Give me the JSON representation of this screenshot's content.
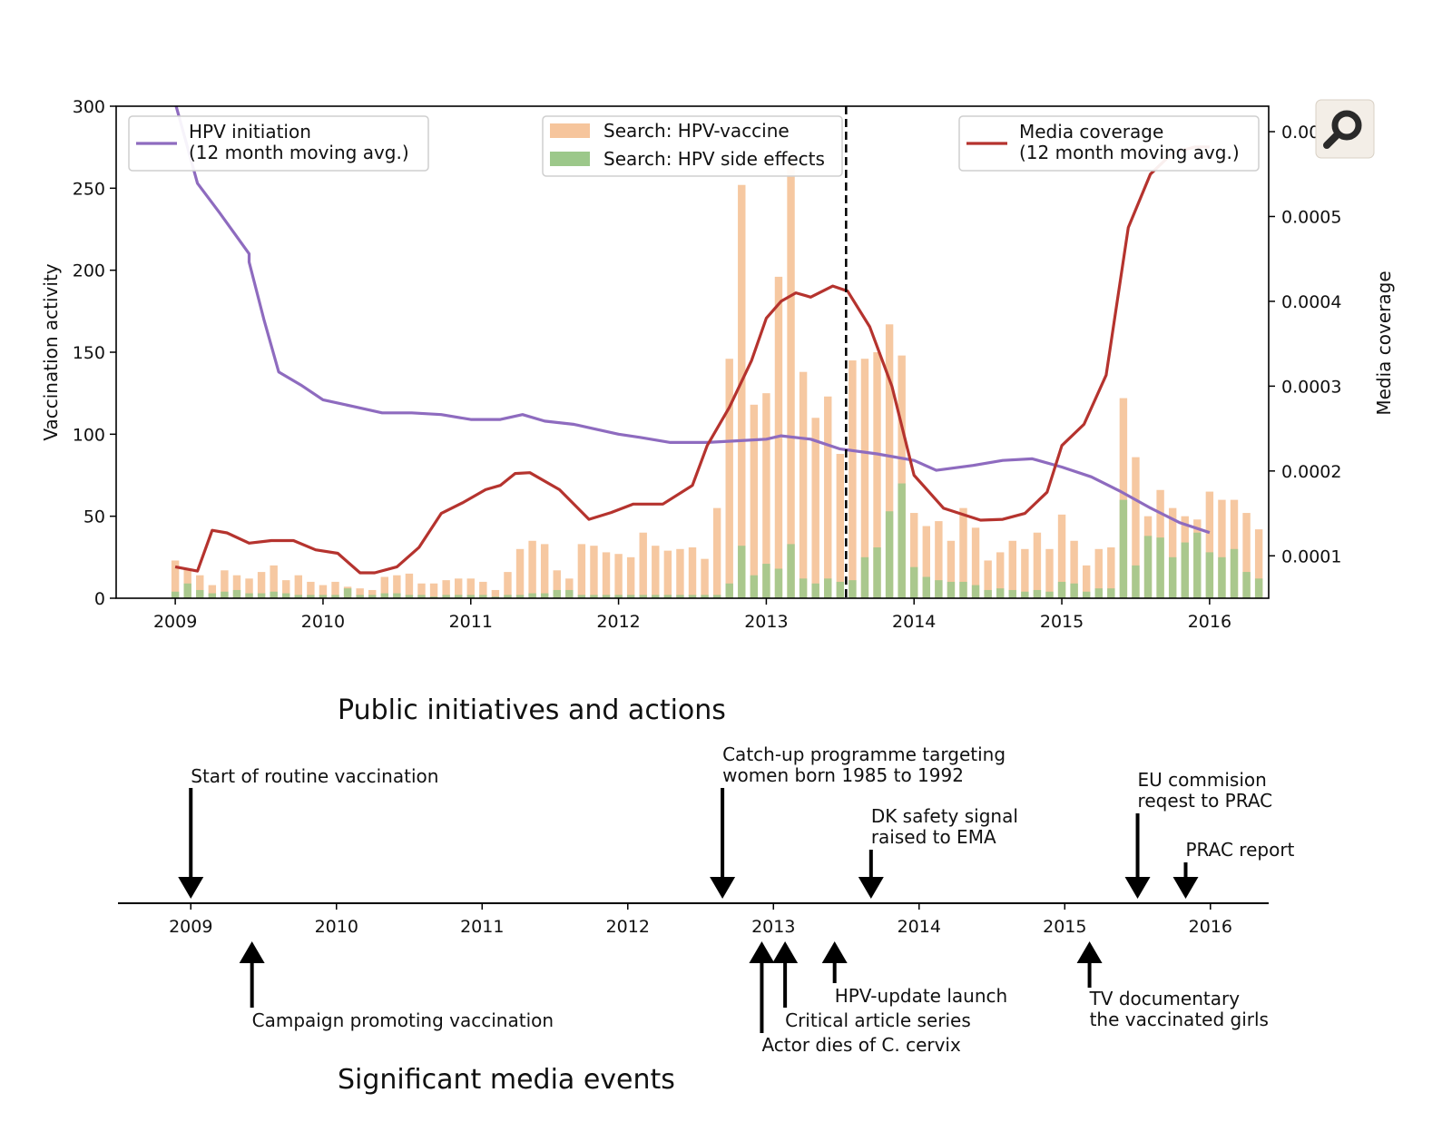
{
  "chart_data": [
    {
      "type": "bar+line",
      "xlim": [
        2008.6,
        2016.4
      ],
      "x_ticks": [
        "2009",
        "2010",
        "2011",
        "2012",
        "2013",
        "2014",
        "2015",
        "2016"
      ],
      "y_left": {
        "label": "Vaccination activity",
        "lim": [
          0,
          300
        ],
        "ticks": [
          "0",
          "50",
          "100",
          "150",
          "200",
          "250",
          "300"
        ]
      },
      "y_right": {
        "label": "Media coverage",
        "lim": [
          5e-05,
          0.00063
        ],
        "ticks": [
          "0.0001",
          "0.0002",
          "0.0003",
          "0.0004",
          "0.0005",
          "0.0006"
        ],
        "tick_labels": [
          "0.0001",
          "0.0002",
          "0.0003",
          "0.0004",
          "0.0005",
          "0.00"
        ]
      },
      "vline_x": 2013.54,
      "legends": [
        {
          "position": "top-left",
          "entries": [
            {
              "label": "HPV initiation\n(12 month moving avg.)",
              "swatch": "line",
              "color": "#8e6bbf"
            }
          ]
        },
        {
          "position": "top-center",
          "entries": [
            {
              "label": "Search: HPV-vaccine",
              "swatch": "patch",
              "color": "#f6c59c"
            },
            {
              "label": "Search: HPV side effects",
              "swatch": "patch",
              "color": "#9cc88a"
            }
          ]
        },
        {
          "position": "top-right",
          "entries": [
            {
              "label": "Media coverage\n(12 month moving avg.)",
              "swatch": "line",
              "color": "#b5332e"
            }
          ]
        }
      ],
      "series": [
        {
          "name": "Search: HPV-vaccine",
          "kind": "bar",
          "axis": "left",
          "color": "#f6c59c",
          "start": 2009.0,
          "step": 0.0833333,
          "values": [
            23,
            18,
            14,
            8,
            17,
            14,
            12,
            16,
            20,
            11,
            14,
            10,
            8,
            10,
            7,
            6,
            5,
            13,
            14,
            15,
            9,
            9,
            11,
            12,
            12,
            10,
            5,
            16,
            30,
            35,
            33,
            17,
            12,
            33,
            32,
            28,
            27,
            25,
            40,
            32,
            29,
            30,
            31,
            24,
            55,
            146,
            252,
            118,
            125,
            196,
            270,
            138,
            110,
            123,
            88,
            145,
            146,
            150,
            167,
            148,
            52,
            44,
            47,
            35,
            55,
            43,
            23,
            28,
            35,
            30,
            40,
            30,
            51,
            35,
            20,
            30,
            31,
            122,
            86,
            50,
            66,
            55,
            50,
            48,
            65,
            60,
            60,
            52,
            42
          ],
          "estimated": true
        },
        {
          "name": "Search: HPV side effects",
          "kind": "bar",
          "axis": "left",
          "color": "#9cc88a",
          "start": 2009.0,
          "step": 0.0833333,
          "values": [
            4,
            9,
            5,
            3,
            4,
            5,
            3,
            3,
            4,
            3,
            2,
            2,
            2,
            2,
            6,
            2,
            2,
            3,
            3,
            2,
            2,
            1,
            2,
            2,
            2,
            2,
            1,
            2,
            2,
            3,
            3,
            5,
            5,
            2,
            2,
            2,
            2,
            2,
            2,
            2,
            2,
            2,
            2,
            2,
            2,
            9,
            32,
            14,
            21,
            18,
            33,
            12,
            9,
            12,
            10,
            11,
            25,
            31,
            53,
            70,
            19,
            13,
            11,
            10,
            10,
            8,
            5,
            6,
            5,
            4,
            5,
            4,
            10,
            9,
            4,
            6,
            6,
            60,
            20,
            38,
            37,
            25,
            34,
            40,
            28,
            25,
            30,
            16,
            12
          ],
          "estimated": true
        },
        {
          "name": "HPV initiation (12 month moving avg.)",
          "kind": "line",
          "axis": "left",
          "color": "#8e6bbf",
          "x": [
            2009.0,
            2009.15,
            2009.3,
            2009.5,
            2009.5,
            2009.6,
            2009.7,
            2009.85,
            2010.0,
            2010.2,
            2010.4,
            2010.6,
            2010.8,
            2011.0,
            2011.1,
            2011.2,
            2011.35,
            2011.5,
            2011.7,
            2011.85,
            2012.0,
            2012.15,
            2012.35,
            2012.6,
            2012.8,
            2013.0,
            2013.1,
            2013.3,
            2013.5,
            2013.75,
            2014.0,
            2014.15,
            2014.4,
            2014.6,
            2014.8,
            2015.0,
            2015.2,
            2015.4,
            2015.6,
            2015.8,
            2016.0
          ],
          "values": [
            302,
            253,
            235,
            210,
            205,
            170,
            138,
            130,
            121,
            117,
            113,
            113,
            112,
            109,
            109,
            109,
            112,
            108,
            106,
            103,
            100,
            98,
            95,
            95,
            96,
            97,
            99,
            97,
            91,
            88,
            84,
            78,
            81,
            84,
            85,
            80,
            74,
            65,
            55,
            46,
            40
          ],
          "estimated": true
        },
        {
          "name": "Media coverage (12 month moving avg.)",
          "kind": "line",
          "axis": "right",
          "color": "#b5332e",
          "x": [
            2009.0,
            2009.15,
            2009.25,
            2009.35,
            2009.5,
            2009.65,
            2009.8,
            2009.95,
            2010.1,
            2010.25,
            2010.35,
            2010.5,
            2010.65,
            2010.8,
            2010.95,
            2011.1,
            2011.2,
            2011.3,
            2011.4,
            2011.6,
            2011.8,
            2011.95,
            2012.1,
            2012.3,
            2012.5,
            2012.6,
            2012.75,
            2012.9,
            2013.0,
            2013.1,
            2013.2,
            2013.3,
            2013.45,
            2013.55,
            2013.7,
            2013.85,
            2014.0,
            2014.2,
            2014.45,
            2014.6,
            2014.75,
            2014.9,
            2015.0,
            2015.15,
            2015.3,
            2015.45,
            2015.6,
            2015.75,
            2015.9,
            2016.0
          ],
          "values": [
            8.7e-05,
            8.2e-05,
            0.00013,
            0.000127,
            0.000115,
            0.000118,
            0.000118,
            0.000107,
            0.000103,
            8e-05,
            8e-05,
            8.7e-05,
            0.00011,
            0.00015,
            0.000163,
            0.000178,
            0.000183,
            0.000197,
            0.000198,
            0.000178,
            0.000143,
            0.000151,
            0.000161,
            0.000161,
            0.000183,
            0.00023,
            0.000275,
            0.00033,
            0.00038,
            0.0004,
            0.00041,
            0.000405,
            0.000418,
            0.000412,
            0.00037,
            0.0003,
            0.000195,
            0.000156,
            0.000142,
            0.000143,
            0.00015,
            0.000175,
            0.00023,
            0.000255,
            0.000313,
            0.000487,
            0.00055,
            0.000575,
            0.000582,
            0.000582
          ],
          "estimated": true
        }
      ]
    },
    {
      "type": "timeline",
      "xlim": [
        2008.5,
        2016.4
      ],
      "x_ticks": [
        "2009",
        "2010",
        "2011",
        "2012",
        "2013",
        "2014",
        "2015",
        "2016"
      ],
      "sections": {
        "above": "Public initiatives and actions",
        "below": "Significant media events"
      },
      "events_above": [
        {
          "x": 2009.0,
          "lines": [
            "Start of routine vaccination"
          ],
          "arrow_len": "long"
        },
        {
          "x": 2012.65,
          "lines": [
            "Catch-up programme targeting",
            "women born 1985 to 1992"
          ],
          "arrow_len": "long"
        },
        {
          "x": 2013.67,
          "lines": [
            "DK safety signal",
            "raised to EMA"
          ],
          "arrow_len": "short"
        },
        {
          "x": 2015.5,
          "lines": [
            "EU commision",
            "reqest to PRAC"
          ],
          "arrow_len": "long"
        },
        {
          "x": 2015.83,
          "lines": [
            "PRAC report"
          ],
          "arrow_len": "tiny"
        }
      ],
      "events_below": [
        {
          "x": 2009.42,
          "lines": [
            "Campaign promoting vaccination"
          ]
        },
        {
          "x": 2012.92,
          "lines": [
            "Actor dies of C. cervix"
          ]
        },
        {
          "x": 2013.08,
          "lines": [
            "Critical article series"
          ]
        },
        {
          "x": 2013.42,
          "lines": [
            "HPV-update launch"
          ]
        },
        {
          "x": 2015.17,
          "lines": [
            "TV documentary",
            "the vaccinated girls"
          ]
        }
      ]
    }
  ],
  "toolbar": {
    "icon": "magnifier-icon"
  }
}
